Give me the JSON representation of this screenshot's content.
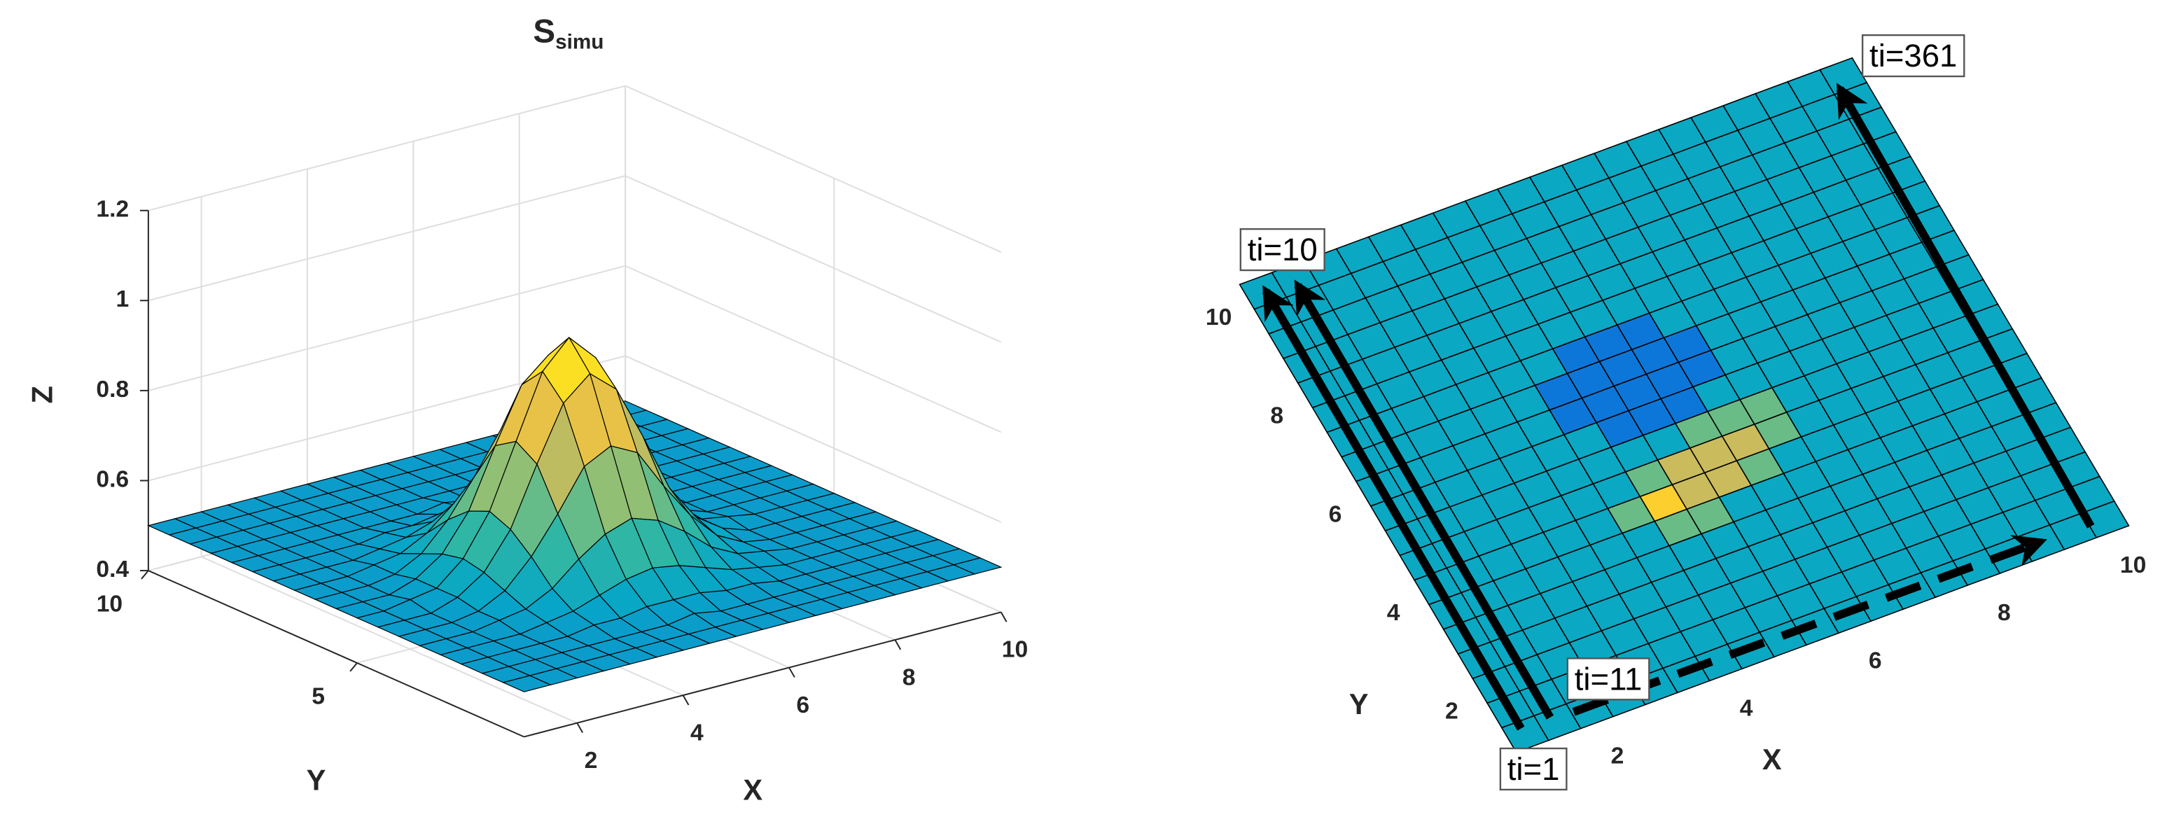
{
  "chart_data": [
    {
      "type": "surface",
      "title": "S",
      "title_subscript": "simu",
      "xlabel": "X",
      "ylabel": "Y",
      "zlabel": "Z",
      "x": [
        1,
        1.5,
        2,
        2.5,
        3,
        3.5,
        4,
        4.5,
        5,
        5.5,
        6,
        6.5,
        7,
        7.5,
        8,
        8.5,
        9,
        9.5,
        10
      ],
      "y": [
        1,
        1.5,
        2,
        2.5,
        3,
        3.5,
        4,
        4.5,
        5,
        5.5,
        6,
        6.5,
        7,
        7.5,
        8,
        8.5,
        9,
        9.5,
        10
      ],
      "z": [
        [
          0.5,
          0.5,
          0.5,
          0.5,
          0.5,
          0.5,
          0.5,
          0.5,
          0.5,
          0.5,
          0.5,
          0.5,
          0.5,
          0.5,
          0.5,
          0.5,
          0.5,
          0.5,
          0.5
        ],
        [
          0.5,
          0.5,
          0.5,
          0.5,
          0.5,
          0.5,
          0.5,
          0.5,
          0.5,
          0.5,
          0.5,
          0.5,
          0.5,
          0.5,
          0.5,
          0.5,
          0.5,
          0.5,
          0.5
        ],
        [
          0.5,
          0.5,
          0.5,
          0.5,
          0.5,
          0.5,
          0.5,
          0.5,
          0.51,
          0.5,
          0.5,
          0.5,
          0.5,
          0.5,
          0.5,
          0.5,
          0.5,
          0.5,
          0.5
        ],
        [
          0.5,
          0.5,
          0.5,
          0.5,
          0.5,
          0.51,
          0.51,
          0.52,
          0.52,
          0.52,
          0.51,
          0.51,
          0.5,
          0.5,
          0.5,
          0.5,
          0.5,
          0.5,
          0.5
        ],
        [
          0.5,
          0.5,
          0.5,
          0.5,
          0.51,
          0.52,
          0.54,
          0.56,
          0.57,
          0.56,
          0.54,
          0.52,
          0.51,
          0.5,
          0.5,
          0.5,
          0.5,
          0.5,
          0.5
        ],
        [
          0.5,
          0.5,
          0.5,
          0.51,
          0.52,
          0.55,
          0.6,
          0.64,
          0.66,
          0.64,
          0.6,
          0.55,
          0.52,
          0.51,
          0.5,
          0.5,
          0.5,
          0.5,
          0.5
        ],
        [
          0.5,
          0.5,
          0.5,
          0.51,
          0.54,
          0.6,
          0.68,
          0.77,
          0.8,
          0.77,
          0.68,
          0.6,
          0.54,
          0.51,
          0.5,
          0.5,
          0.5,
          0.5,
          0.5
        ],
        [
          0.5,
          0.5,
          0.5,
          0.52,
          0.56,
          0.64,
          0.77,
          0.89,
          0.94,
          0.89,
          0.77,
          0.64,
          0.56,
          0.52,
          0.5,
          0.5,
          0.5,
          0.5,
          0.5
        ],
        [
          0.5,
          0.5,
          0.51,
          0.52,
          0.57,
          0.66,
          0.8,
          0.94,
          1,
          0.94,
          0.8,
          0.66,
          0.57,
          0.52,
          0.51,
          0.5,
          0.5,
          0.5,
          0.5
        ],
        [
          0.5,
          0.5,
          0.5,
          0.52,
          0.56,
          0.64,
          0.77,
          0.89,
          0.94,
          0.89,
          0.77,
          0.64,
          0.56,
          0.52,
          0.5,
          0.5,
          0.5,
          0.5,
          0.5
        ],
        [
          0.5,
          0.5,
          0.5,
          0.51,
          0.54,
          0.6,
          0.68,
          0.77,
          0.8,
          0.77,
          0.68,
          0.6,
          0.54,
          0.51,
          0.5,
          0.5,
          0.5,
          0.5,
          0.5
        ],
        [
          0.5,
          0.5,
          0.5,
          0.51,
          0.52,
          0.55,
          0.6,
          0.64,
          0.66,
          0.64,
          0.6,
          0.55,
          0.52,
          0.51,
          0.5,
          0.5,
          0.5,
          0.5,
          0.5
        ],
        [
          0.5,
          0.5,
          0.5,
          0.5,
          0.51,
          0.52,
          0.54,
          0.56,
          0.57,
          0.56,
          0.54,
          0.52,
          0.51,
          0.5,
          0.5,
          0.5,
          0.5,
          0.5,
          0.5
        ],
        [
          0.5,
          0.5,
          0.5,
          0.5,
          0.5,
          0.51,
          0.51,
          0.52,
          0.52,
          0.52,
          0.51,
          0.51,
          0.5,
          0.5,
          0.5,
          0.5,
          0.5,
          0.5,
          0.5
        ],
        [
          0.5,
          0.5,
          0.5,
          0.5,
          0.5,
          0.5,
          0.5,
          0.5,
          0.51,
          0.5,
          0.5,
          0.5,
          0.5,
          0.5,
          0.5,
          0.5,
          0.5,
          0.5,
          0.5
        ],
        [
          0.5,
          0.5,
          0.5,
          0.5,
          0.5,
          0.5,
          0.5,
          0.5,
          0.5,
          0.5,
          0.5,
          0.5,
          0.5,
          0.5,
          0.5,
          0.5,
          0.5,
          0.5,
          0.5
        ],
        [
          0.5,
          0.5,
          0.5,
          0.5,
          0.5,
          0.5,
          0.5,
          0.5,
          0.5,
          0.5,
          0.5,
          0.5,
          0.5,
          0.5,
          0.5,
          0.5,
          0.5,
          0.5,
          0.5
        ],
        [
          0.5,
          0.5,
          0.5,
          0.5,
          0.5,
          0.5,
          0.5,
          0.5,
          0.5,
          0.5,
          0.5,
          0.5,
          0.5,
          0.5,
          0.5,
          0.5,
          0.5,
          0.5,
          0.5
        ],
        [
          0.5,
          0.5,
          0.5,
          0.5,
          0.5,
          0.5,
          0.5,
          0.5,
          0.5,
          0.5,
          0.5,
          0.5,
          0.5,
          0.5,
          0.5,
          0.5,
          0.5,
          0.5,
          0.5
        ]
      ],
      "xlim": [
        1,
        10
      ],
      "ylim": [
        1,
        10
      ],
      "zlim": [
        0.4,
        1.2
      ],
      "xticks": [
        2,
        4,
        6,
        8,
        10
      ],
      "yticks": [
        5,
        10
      ],
      "zticks": [
        0.4,
        0.6,
        0.8,
        1,
        1.2
      ],
      "grid": true,
      "clim": [
        0.25,
        1.0
      ],
      "colormap": [
        "#352a87",
        "#0363e1",
        "#1485d4",
        "#06a7c6",
        "#38b99e",
        "#92bf73",
        "#d9ba56",
        "#fcce2e",
        "#f9fb0e"
      ]
    },
    {
      "type": "top-view",
      "xlabel": "X",
      "ylabel": "Y",
      "x": [
        1,
        1.5,
        2,
        2.5,
        3,
        3.5,
        4,
        4.5,
        5,
        5.5,
        6,
        6.5,
        7,
        7.5,
        8,
        8.5,
        9,
        9.5,
        10
      ],
      "y": [
        1,
        1.5,
        2,
        2.5,
        3,
        3.5,
        4,
        4.5,
        5,
        5.5,
        6,
        6.5,
        7,
        7.5,
        8,
        8.5,
        9,
        9.5,
        10
      ],
      "z": [
        [
          0.5,
          0.5,
          0.5,
          0.5,
          0.5,
          0.5,
          0.5,
          0.5,
          0.5,
          0.5,
          0.5,
          0.5,
          0.5,
          0.5,
          0.5,
          0.5,
          0.5,
          0.5,
          0.5
        ],
        [
          0.5,
          0.5,
          0.5,
          0.5,
          0.5,
          0.5,
          0.5,
          0.5,
          0.5,
          0.5,
          0.5,
          0.5,
          0.5,
          0.5,
          0.5,
          0.5,
          0.5,
          0.5,
          0.5
        ],
        [
          0.5,
          0.5,
          0.5,
          0.5,
          0.5,
          0.5,
          0.5,
          0.5,
          0.5,
          0.5,
          0.5,
          0.5,
          0.5,
          0.5,
          0.5,
          0.5,
          0.5,
          0.5,
          0.5
        ],
        [
          0.5,
          0.5,
          0.5,
          0.5,
          0.5,
          0.5,
          0.5,
          0.5,
          0.5,
          0.5,
          0.5,
          0.5,
          0.5,
          0.5,
          0.5,
          0.5,
          0.5,
          0.5,
          0.5
        ],
        [
          0.5,
          0.5,
          0.5,
          0.5,
          0.5,
          0.5,
          0.5,
          0.5,
          0.5,
          0.5,
          0.5,
          0.5,
          0.5,
          0.5,
          0.5,
          0.5,
          0.5,
          0.5,
          0.5
        ],
        [
          0.5,
          0.5,
          0.5,
          0.5,
          0.5,
          0.5,
          0.5,
          0.62,
          0.62,
          0.5,
          0.5,
          0.5,
          0.5,
          0.5,
          0.5,
          0.5,
          0.5,
          0.5,
          0.5
        ],
        [
          0.5,
          0.5,
          0.5,
          0.5,
          0.5,
          0.5,
          0.62,
          0.82,
          0.72,
          0.72,
          0.62,
          0.5,
          0.5,
          0.5,
          0.5,
          0.5,
          0.5,
          0.5,
          0.5
        ],
        [
          0.5,
          0.5,
          0.5,
          0.5,
          0.5,
          0.5,
          0.5,
          0.62,
          0.72,
          0.72,
          0.72,
          0.62,
          0.5,
          0.5,
          0.5,
          0.5,
          0.5,
          0.5,
          0.5
        ],
        [
          0.5,
          0.5,
          0.5,
          0.5,
          0.5,
          0.5,
          0.5,
          0.5,
          0.5,
          0.62,
          0.62,
          0.62,
          0.5,
          0.5,
          0.5,
          0.5,
          0.5,
          0.5,
          0.5
        ],
        [
          0.5,
          0.5,
          0.5,
          0.5,
          0.5,
          0.5,
          0.5,
          0.38,
          0.38,
          0.38,
          0.5,
          0.5,
          0.5,
          0.5,
          0.5,
          0.5,
          0.5,
          0.5,
          0.5
        ],
        [
          0.5,
          0.5,
          0.5,
          0.5,
          0.5,
          0.5,
          0.38,
          0.38,
          0.38,
          0.38,
          0.38,
          0.5,
          0.5,
          0.5,
          0.5,
          0.5,
          0.5,
          0.5,
          0.5
        ],
        [
          0.5,
          0.5,
          0.5,
          0.5,
          0.5,
          0.5,
          0.38,
          0.38,
          0.38,
          0.38,
          0.38,
          0.5,
          0.5,
          0.5,
          0.5,
          0.5,
          0.5,
          0.5,
          0.5
        ],
        [
          0.5,
          0.5,
          0.5,
          0.5,
          0.5,
          0.5,
          0.5,
          0.38,
          0.38,
          0.38,
          0.5,
          0.5,
          0.5,
          0.5,
          0.5,
          0.5,
          0.5,
          0.5,
          0.5
        ],
        [
          0.5,
          0.5,
          0.5,
          0.5,
          0.5,
          0.5,
          0.5,
          0.5,
          0.5,
          0.5,
          0.5,
          0.5,
          0.5,
          0.5,
          0.5,
          0.5,
          0.5,
          0.5,
          0.5
        ],
        [
          0.5,
          0.5,
          0.5,
          0.5,
          0.5,
          0.5,
          0.5,
          0.5,
          0.5,
          0.5,
          0.5,
          0.5,
          0.5,
          0.5,
          0.5,
          0.5,
          0.5,
          0.5,
          0.5
        ],
        [
          0.5,
          0.5,
          0.5,
          0.5,
          0.5,
          0.5,
          0.5,
          0.5,
          0.5,
          0.5,
          0.5,
          0.5,
          0.5,
          0.5,
          0.5,
          0.5,
          0.5,
          0.5,
          0.5
        ],
        [
          0.5,
          0.5,
          0.5,
          0.5,
          0.5,
          0.5,
          0.5,
          0.5,
          0.5,
          0.5,
          0.5,
          0.5,
          0.5,
          0.5,
          0.5,
          0.5,
          0.5,
          0.5,
          0.5
        ],
        [
          0.5,
          0.5,
          0.5,
          0.5,
          0.5,
          0.5,
          0.5,
          0.5,
          0.5,
          0.5,
          0.5,
          0.5,
          0.5,
          0.5,
          0.5,
          0.5,
          0.5,
          0.5,
          0.5
        ],
        [
          0.5,
          0.5,
          0.5,
          0.5,
          0.5,
          0.5,
          0.5,
          0.5,
          0.5,
          0.5,
          0.5,
          0.5,
          0.5,
          0.5,
          0.5,
          0.5,
          0.5,
          0.5,
          0.5
        ]
      ],
      "xlim": [
        1,
        10
      ],
      "ylim": [
        1,
        10
      ],
      "xticks": [
        2,
        4,
        6,
        8,
        10
      ],
      "yticks": [
        2,
        4,
        6,
        8,
        10
      ],
      "clim": [
        0.25,
        0.9
      ],
      "colormap": [
        "#352a87",
        "#0363e1",
        "#1485d4",
        "#06a7c6",
        "#38b99e",
        "#92bf73",
        "#d9ba56",
        "#fcce2e",
        "#f9fb0e"
      ],
      "annotations": [
        "ti=1",
        "ti=10",
        "ti=11",
        "ti=361"
      ]
    }
  ]
}
